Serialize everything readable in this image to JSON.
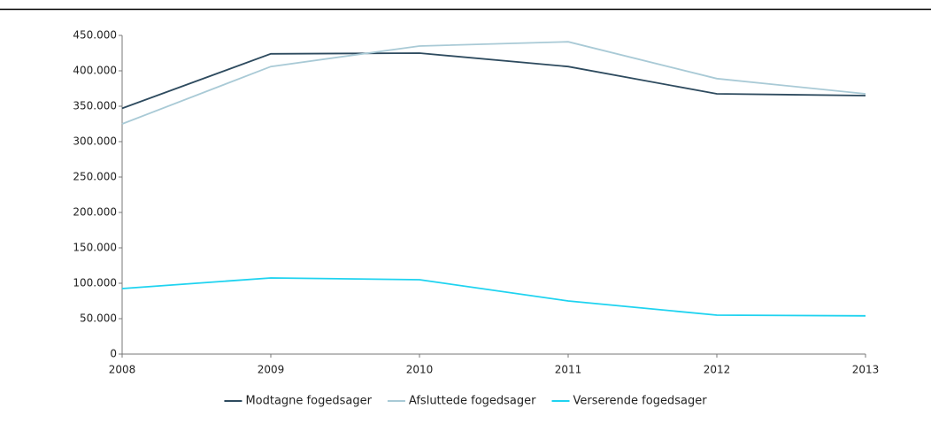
{
  "chart_data": {
    "type": "line",
    "x": [
      2008,
      2009,
      2010,
      2011,
      2012,
      2013
    ],
    "xlim": [
      2008,
      2013
    ],
    "xticks": [
      2008,
      2009,
      2010,
      2011,
      2012,
      2013
    ],
    "ylim": [
      0,
      450000
    ],
    "yticks": [
      0,
      {
        "value": 50000,
        "label": "50.000"
      },
      {
        "value": 100000,
        "label": "100.000"
      },
      {
        "value": 150000,
        "label": "150.000"
      },
      {
        "value": 200000,
        "label": "200.000"
      },
      {
        "value": 250000,
        "label": "250.000"
      },
      {
        "value": 300000,
        "label": "300.000"
      },
      {
        "value": 350000,
        "label": "350.000"
      },
      {
        "value": 400000,
        "label": "400.000"
      },
      {
        "value": 450000,
        "label": "450.000"
      }
    ],
    "grid": false,
    "legend": "bottom",
    "series": [
      {
        "name": "Modtagne fogedsager",
        "color": "#2e4b5f",
        "values": [
          347000,
          424000,
          425000,
          406000,
          367500,
          365000
        ]
      },
      {
        "name": "Afsluttede fogedsager",
        "color": "#a9cad6",
        "values": [
          325000,
          406000,
          435000,
          441000,
          389000,
          367500
        ]
      },
      {
        "name": "Verserende fogedsager",
        "color": "#1fd3f0",
        "values": [
          92500,
          107500,
          105000,
          75000,
          55000,
          54000
        ]
      }
    ]
  }
}
